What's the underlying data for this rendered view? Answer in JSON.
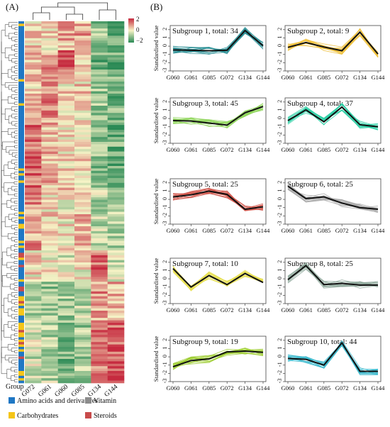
{
  "panel_a": {
    "label": "(A)",
    "columns": [
      "G072",
      "G061",
      "G060",
      "G085",
      "G134",
      "G144"
    ],
    "group_label": "Group",
    "colorbar": {
      "ticks": [
        "2",
        "0",
        "−2"
      ],
      "colors": {
        "high": "#c62a3f",
        "mid": "#f7f3c6",
        "low": "#2a8a55"
      }
    },
    "group_colors": {
      "amino": "#1f77c4",
      "carb": "#f5c518",
      "vitamin": "#8c8c8c",
      "steroids": "#c84b4b"
    },
    "legend": [
      {
        "label": "Amino acids and derivatives",
        "color": "#1f77c4"
      },
      {
        "label": "Vitamin",
        "color": "#8c8c8c"
      },
      {
        "label": "Carbohydrates",
        "color": "#f5c518"
      },
      {
        "label": "Steroids",
        "color": "#c84b4b"
      }
    ]
  },
  "panel_b": {
    "label": "(B)",
    "ylabel": "Standardised value",
    "y_ticks": [
      "-3",
      "-2",
      "-1",
      "0",
      "1",
      "2"
    ]
  },
  "chart_data": [
    {
      "type": "line",
      "title": "Subgroup 1, total: 34",
      "x": [
        "G060",
        "G061",
        "G085",
        "G072",
        "G134",
        "G144"
      ],
      "ylim": [
        -3,
        2.5
      ],
      "color": "#2a8f95",
      "series": [
        {
          "values": [
            -0.45,
            -0.5,
            -0.55,
            -0.5,
            1.9,
            0.05
          ]
        }
      ]
    },
    {
      "type": "line",
      "title": "Subgroup 2, total: 9",
      "x": [
        "G060",
        "G061",
        "G085",
        "G072",
        "G134",
        "G144"
      ],
      "ylim": [
        -3,
        2.5
      ],
      "color": "#f0c13b",
      "series": [
        {
          "values": [
            -0.15,
            0.45,
            -0.1,
            -0.55,
            1.7,
            -0.95
          ]
        }
      ]
    },
    {
      "type": "line",
      "title": "Subgroup 3, total: 45",
      "x": [
        "G060",
        "G061",
        "G085",
        "G072",
        "G134",
        "G144"
      ],
      "ylim": [
        -3,
        2.5
      ],
      "color": "#8fd65a",
      "series": [
        {
          "values": [
            -0.25,
            -0.3,
            -0.55,
            -0.8,
            0.7,
            1.45
          ]
        }
      ]
    },
    {
      "type": "line",
      "title": "Subgroup 4, total: 37",
      "x": [
        "G060",
        "G061",
        "G085",
        "G072",
        "G134",
        "G144"
      ],
      "ylim": [
        -3,
        2.5
      ],
      "color": "#2ccfa5",
      "series": [
        {
          "values": [
            -0.25,
            1.05,
            -0.4,
            1.4,
            -0.75,
            -1.0
          ]
        }
      ]
    },
    {
      "type": "line",
      "title": "Subgroup 5, total: 25",
      "x": [
        "G060",
        "G061",
        "G085",
        "G072",
        "G134",
        "G144"
      ],
      "ylim": [
        -3,
        2.5
      ],
      "color": "#d0554a",
      "series": [
        {
          "values": [
            0.3,
            0.55,
            1.0,
            0.6,
            -1.2,
            -0.9
          ]
        }
      ]
    },
    {
      "type": "line",
      "title": "Subgroup 6, total: 25",
      "x": [
        "G060",
        "G061",
        "G085",
        "G072",
        "G134",
        "G144"
      ],
      "ylim": [
        -3,
        2.5
      ],
      "color": "#a9a9a9",
      "series": [
        {
          "values": [
            1.6,
            0.1,
            0.3,
            -0.45,
            -1.0,
            -1.2
          ]
        }
      ]
    },
    {
      "type": "line",
      "title": "Subgroup 7, total: 10",
      "x": [
        "G060",
        "G061",
        "G085",
        "G072",
        "G134",
        "G144"
      ],
      "ylim": [
        -3,
        2.5
      ],
      "color": "#e6df50",
      "series": [
        {
          "values": [
            1.25,
            -1.0,
            0.4,
            -0.7,
            0.65,
            -0.45
          ]
        }
      ]
    },
    {
      "type": "line",
      "title": "Subgroup 8, total: 25",
      "x": [
        "G060",
        "G061",
        "G085",
        "G072",
        "G134",
        "G144"
      ],
      "ylim": [
        -3,
        2.5
      ],
      "color": "#8fa99c",
      "series": [
        {
          "values": [
            -0.1,
            1.6,
            -0.7,
            -0.55,
            -0.75,
            -0.75
          ]
        }
      ]
    },
    {
      "type": "line",
      "title": "Subgroup 9, total: 19",
      "x": [
        "G060",
        "G061",
        "G085",
        "G072",
        "G134",
        "G144"
      ],
      "ylim": [
        -3,
        2.5
      ],
      "color": "#9ccc2e",
      "series": [
        {
          "values": [
            -1.2,
            -0.45,
            -0.25,
            0.6,
            0.7,
            0.55
          ]
        }
      ]
    },
    {
      "type": "line",
      "title": "Subgroup 10, total: 44",
      "x": [
        "G060",
        "G061",
        "G085",
        "G072",
        "G134",
        "G144"
      ],
      "ylim": [
        -3,
        2.5
      ],
      "color": "#3ab9cc",
      "series": [
        {
          "values": [
            -0.2,
            -0.3,
            -1.0,
            1.7,
            -1.75,
            -1.75
          ]
        }
      ]
    }
  ]
}
